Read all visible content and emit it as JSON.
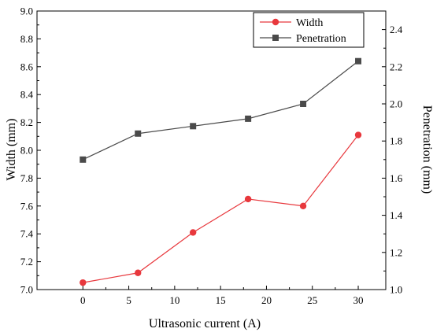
{
  "chart_data": {
    "type": "line",
    "x": [
      0,
      6,
      12,
      18,
      24,
      30
    ],
    "xlabel": "Ultrasonic current (A)",
    "xlim": [
      -5,
      33
    ],
    "xticks": [
      "0",
      "5",
      "10",
      "15",
      "20",
      "25",
      "30"
    ],
    "ylabel_left": "Width (mm)",
    "ylim_left": [
      7.0,
      9.0
    ],
    "yticks_left": [
      "7.0",
      "7.2",
      "7.4",
      "7.6",
      "7.8",
      "8.0",
      "8.2",
      "8.4",
      "8.6",
      "8.8",
      "9.0"
    ],
    "ylabel_right": "Penetration (mm)",
    "ylim_right": [
      1.0,
      2.5
    ],
    "yticks_right": [
      "1.0",
      "1.2",
      "1.4",
      "1.6",
      "1.8",
      "2.0",
      "2.2",
      "2.4"
    ],
    "grid": false,
    "legend_position": "top-right",
    "series": [
      {
        "name": "Width",
        "axis": "left",
        "marker": "circle",
        "color": "#e8383d",
        "values": [
          7.05,
          7.12,
          7.41,
          7.65,
          7.6,
          8.11
        ]
      },
      {
        "name": "Penetration",
        "axis": "right",
        "marker": "square",
        "color": "#4a4a4a",
        "values": [
          1.7,
          1.84,
          1.88,
          1.92,
          2.0,
          2.23
        ]
      }
    ]
  }
}
